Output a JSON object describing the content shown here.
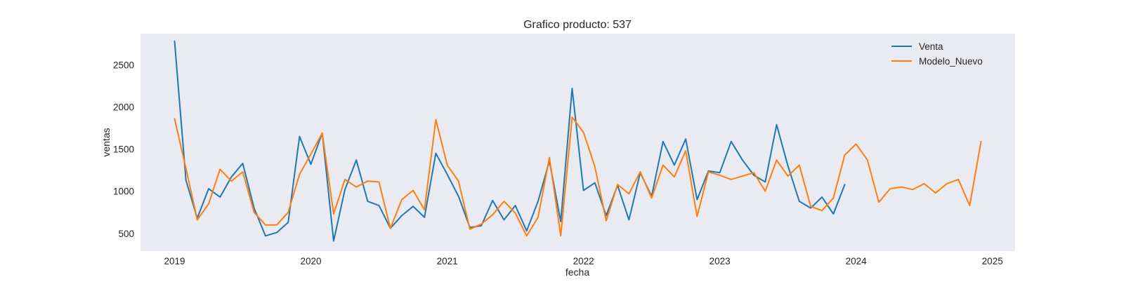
{
  "chart_data": {
    "type": "line",
    "title": "Grafico producto: 537",
    "xlabel": "fecha",
    "ylabel": "ventas",
    "x_ticks": [
      "2019",
      "2020",
      "2021",
      "2022",
      "2023",
      "2024",
      "2025"
    ],
    "y_ticks": [
      500,
      1000,
      1500,
      2000,
      2500
    ],
    "xlim": [
      "2018-10-01",
      "2025-03-01"
    ],
    "ylim": [
      290,
      2870
    ],
    "grid": false,
    "background": "#eaeaf2",
    "legend_position": "top-right",
    "series": [
      {
        "name": "Venta",
        "color": "#1f77b4",
        "x": [
          "2019-01",
          "2019-02",
          "2019-03",
          "2019-04",
          "2019-05",
          "2019-06",
          "2019-07",
          "2019-08",
          "2019-09",
          "2019-10",
          "2019-11",
          "2019-12",
          "2020-01",
          "2020-02",
          "2020-03",
          "2020-04",
          "2020-05",
          "2020-06",
          "2020-07",
          "2020-08",
          "2020-09",
          "2020-10",
          "2020-11",
          "2020-12",
          "2021-01",
          "2021-02",
          "2021-03",
          "2021-04",
          "2021-05",
          "2021-06",
          "2021-07",
          "2021-08",
          "2021-09",
          "2021-10",
          "2021-11",
          "2021-12",
          "2022-01",
          "2022-02",
          "2022-03",
          "2022-04",
          "2022-05",
          "2022-06",
          "2022-07",
          "2022-08",
          "2022-09",
          "2022-10",
          "2022-11",
          "2022-12",
          "2023-01",
          "2023-02",
          "2023-03",
          "2023-04",
          "2023-05",
          "2023-06",
          "2023-07",
          "2023-08",
          "2023-09",
          "2023-10",
          "2023-11",
          "2023-12"
        ],
        "values": [
          2780,
          1130,
          680,
          1030,
          930,
          1170,
          1330,
          800,
          470,
          510,
          630,
          1650,
          1320,
          1690,
          410,
          1020,
          1370,
          880,
          830,
          560,
          710,
          820,
          690,
          1450,
          1200,
          940,
          570,
          590,
          890,
          660,
          830,
          530,
          880,
          1360,
          640,
          2220,
          1010,
          1100,
          710,
          1070,
          660,
          1220,
          940,
          1590,
          1310,
          1620,
          900,
          1240,
          1220,
          1590,
          1370,
          1190,
          1110,
          1790,
          1300,
          880,
          800,
          930,
          730,
          1080
        ]
      },
      {
        "name": "Modelo_Nuevo",
        "color": "#ff7f0e",
        "x": [
          "2019-01",
          "2019-02",
          "2019-03",
          "2019-04",
          "2019-05",
          "2019-06",
          "2019-07",
          "2019-08",
          "2019-09",
          "2019-10",
          "2019-11",
          "2019-12",
          "2020-01",
          "2020-02",
          "2020-03",
          "2020-04",
          "2020-05",
          "2020-06",
          "2020-07",
          "2020-08",
          "2020-09",
          "2020-10",
          "2020-11",
          "2020-12",
          "2021-01",
          "2021-02",
          "2021-03",
          "2021-04",
          "2021-05",
          "2021-06",
          "2021-07",
          "2021-08",
          "2021-09",
          "2021-10",
          "2021-11",
          "2021-12",
          "2022-01",
          "2022-02",
          "2022-03",
          "2022-04",
          "2022-05",
          "2022-06",
          "2022-07",
          "2022-08",
          "2022-09",
          "2022-10",
          "2022-11",
          "2022-12",
          "2023-01",
          "2023-02",
          "2023-03",
          "2023-04",
          "2023-05",
          "2023-06",
          "2023-07",
          "2023-08",
          "2023-09",
          "2023-10",
          "2023-11",
          "2023-12",
          "2024-01",
          "2024-02",
          "2024-03",
          "2024-04",
          "2024-05",
          "2024-06",
          "2024-07",
          "2024-08",
          "2024-09",
          "2024-10",
          "2024-11",
          "2024-12"
        ],
        "values": [
          1860,
          1270,
          660,
          850,
          1260,
          1120,
          1230,
          750,
          600,
          600,
          750,
          1200,
          1440,
          1690,
          730,
          1140,
          1050,
          1120,
          1110,
          560,
          900,
          1010,
          780,
          1850,
          1310,
          1120,
          550,
          610,
          720,
          880,
          740,
          470,
          690,
          1400,
          470,
          1880,
          1700,
          1290,
          650,
          1080,
          970,
          1230,
          920,
          1310,
          1170,
          1480,
          700,
          1230,
          1190,
          1140,
          1180,
          1220,
          1000,
          1370,
          1180,
          1310,
          820,
          770,
          920,
          1430,
          1560,
          1370,
          870,
          1030,
          1050,
          1020,
          1090,
          980,
          1090,
          1140,
          830,
          1590
        ]
      }
    ]
  }
}
